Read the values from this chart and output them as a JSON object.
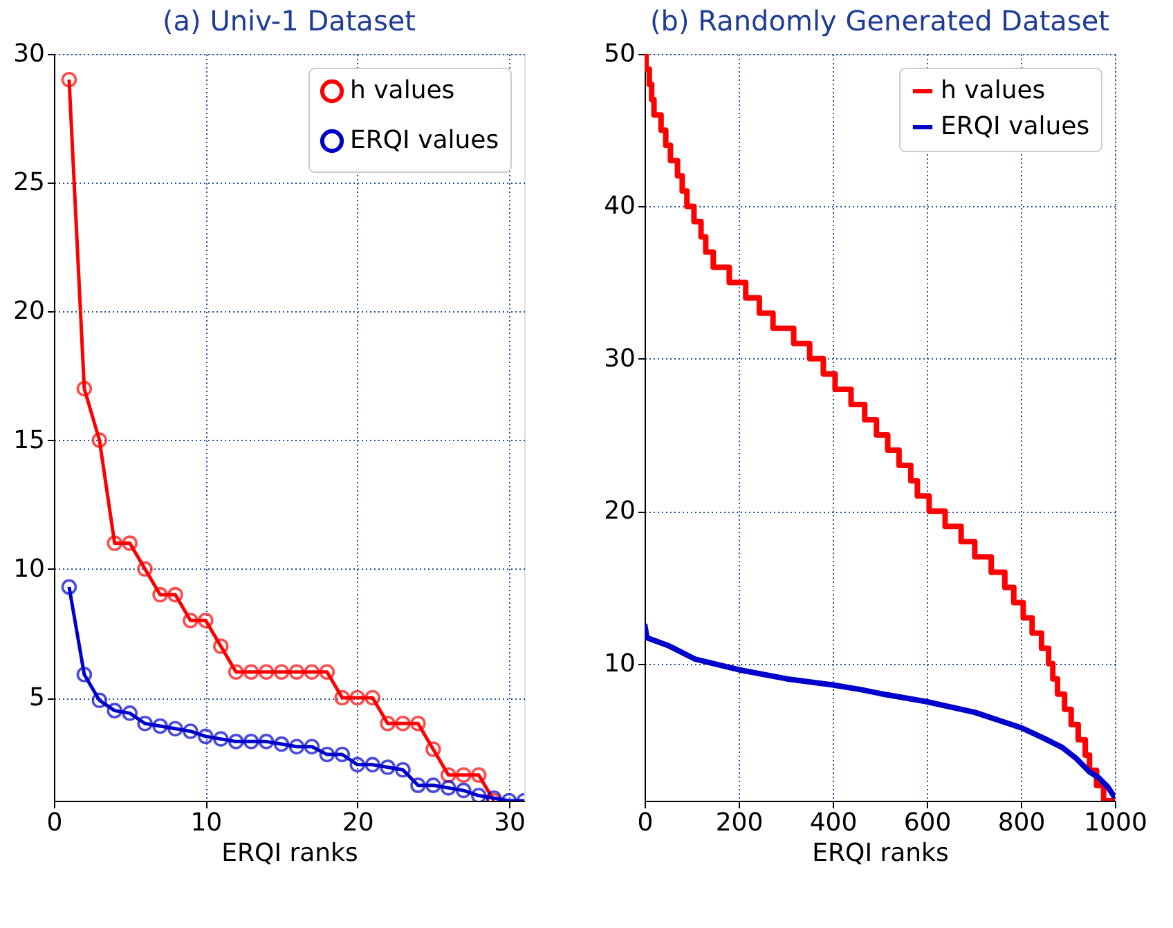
{
  "chart_data": [
    {
      "type": "line",
      "title": "(a) Univ-1 Dataset",
      "xlabel": "ERQI ranks",
      "x": [
        1,
        2,
        3,
        4,
        5,
        6,
        7,
        8,
        9,
        10,
        11,
        12,
        13,
        14,
        15,
        16,
        17,
        18,
        19,
        20,
        21,
        22,
        23,
        24,
        25,
        26,
        27,
        28,
        29,
        30,
        31
      ],
      "series": [
        {
          "name": "h values",
          "color": "#ff0000",
          "values": [
            29,
            17,
            15,
            11,
            11,
            10,
            9,
            9,
            8,
            8,
            7,
            6,
            6,
            6,
            6,
            6,
            6,
            6,
            5,
            5,
            5,
            4,
            4,
            4,
            3,
            2,
            2,
            2,
            1,
            null,
            null
          ]
        },
        {
          "name": "ERQI values",
          "color": "#0000cc",
          "values": [
            9.3,
            5.9,
            4.9,
            4.5,
            4.4,
            4.0,
            3.9,
            3.8,
            3.7,
            3.5,
            3.4,
            3.3,
            3.3,
            3.3,
            3.2,
            3.1,
            3.1,
            2.8,
            2.8,
            2.4,
            2.4,
            2.3,
            2.2,
            1.6,
            1.6,
            1.5,
            1.4,
            1.2,
            1.1,
            1.0,
            1.0
          ]
        }
      ],
      "xlim": [
        0,
        31
      ],
      "xticks": [
        0,
        10,
        20,
        30
      ],
      "ylim": [
        1,
        30
      ],
      "yticks": [
        5,
        10,
        15,
        20,
        25,
        30
      ],
      "grid": true,
      "legend": "top right",
      "marker": "circle",
      "line_style": "solid"
    },
    {
      "type": "line",
      "title": "(b) Randomly Generated Dataset",
      "xlabel": "ERQI ranks",
      "series": [
        {
          "name": "h values",
          "color": "#ff0000",
          "type": "step",
          "x": [
            0,
            3,
            10,
            15,
            20,
            35,
            45,
            55,
            70,
            80,
            90,
            105,
            120,
            130,
            146,
            180,
            215,
            244,
            273,
            317,
            351,
            380,
            405,
            439,
            468,
            493,
            517,
            541,
            566,
            580,
            605,
            639,
            673,
            702,
            737,
            766,
            785,
            805,
            824,
            844,
            859,
            868,
            878,
            893,
            907,
            922,
            937,
            946,
            961,
            976,
            1000
          ],
          "values": [
            50,
            49,
            48,
            47,
            46,
            45,
            44,
            43,
            42,
            41,
            40,
            39,
            38,
            37,
            36,
            35,
            34,
            33,
            32,
            31,
            30,
            29,
            28,
            27,
            26,
            25,
            24,
            23,
            22,
            21,
            20,
            19,
            18,
            17,
            16,
            15,
            14,
            13,
            12,
            11,
            10,
            9,
            8,
            7,
            6,
            5,
            4,
            3,
            2,
            1,
            1
          ]
        },
        {
          "name": "ERQI values",
          "color": "#0000cc",
          "type": "line",
          "x": [
            0,
            5,
            49,
            107,
            200,
            302,
            400,
            459,
            507,
            600,
            702,
            800,
            849,
            888,
            917,
            946,
            966,
            985,
            1000
          ],
          "values": [
            12.6,
            11.7,
            11.2,
            10.3,
            9.6,
            9.0,
            8.6,
            8.3,
            8.0,
            7.5,
            6.8,
            5.8,
            5.1,
            4.5,
            3.8,
            2.9,
            2.5,
            1.9,
            1.2
          ]
        }
      ],
      "xlim": [
        0,
        1000
      ],
      "xticks": [
        0,
        200,
        400,
        600,
        800,
        1000
      ],
      "ylim": [
        1,
        50
      ],
      "yticks": [
        10,
        20,
        30,
        40,
        50
      ],
      "grid": true,
      "legend": "top right",
      "marker": "none",
      "line_style": "solid"
    }
  ]
}
